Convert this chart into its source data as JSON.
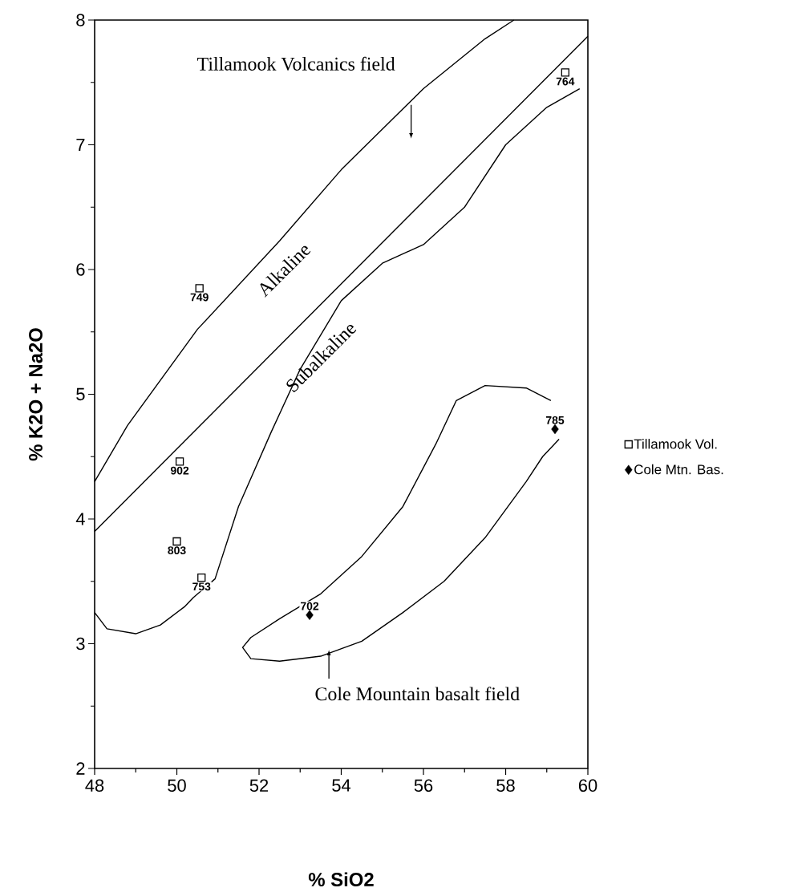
{
  "chart_data": {
    "type": "scatter",
    "xlabel": "% SiO2",
    "ylabel": "% K2O + Na2O",
    "xlim": [
      48,
      60
    ],
    "ylim": [
      2,
      8
    ],
    "xticks": [
      48,
      50,
      52,
      54,
      56,
      58,
      60
    ],
    "yticks": [
      2,
      3,
      4,
      5,
      6,
      7,
      8
    ],
    "legend": "right",
    "grid": false,
    "series": [
      {
        "name": "Tillamook Vol.",
        "marker": "square",
        "color": "#000000",
        "x": [
          50.55,
          50.07,
          50.0,
          50.6,
          59.45
        ],
        "values": [
          5.85,
          4.46,
          3.82,
          3.53,
          7.58
        ]
      },
      {
        "name": "Cole Mtn. Bas.",
        "marker": "diamond",
        "color": "#000000",
        "x": [
          53.23,
          59.2
        ],
        "values": [
          3.23,
          4.72
        ]
      },
      {
        "type": "line",
        "marker": "none",
        "color": "#000000",
        "x": [
          48,
          60
        ],
        "values": [
          3.9,
          7.87
        ]
      },
      {
        "type": "line",
        "marker": "none",
        "color": "#000000",
        "x": [
          48,
          48.8,
          50.5,
          52.5,
          54,
          56,
          57.5,
          58.2
        ],
        "values": [
          4.3,
          4.75,
          5.52,
          6.23,
          6.8,
          7.45,
          7.85,
          8.0
        ]
      },
      {
        "type": "line",
        "marker": "none",
        "color": "#000000",
        "x": [
          48,
          48.3,
          49,
          49.6,
          50.2,
          50.4,
          50.93,
          51.5,
          52.3,
          53,
          54,
          55,
          56,
          57,
          58,
          59,
          59.8
        ],
        "values": [
          3.25,
          3.12,
          3.08,
          3.15,
          3.3,
          3.37,
          3.52,
          4.1,
          4.7,
          5.2,
          5.75,
          6.05,
          6.2,
          6.5,
          7.0,
          7.3,
          7.45
        ]
      },
      {
        "type": "line",
        "marker": "none",
        "color": "#000000",
        "x": [
          59.1,
          58.5,
          57.5,
          56.8,
          56.3,
          55.5,
          54.5,
          53.5,
          52.5,
          51.8,
          51.6,
          51.8,
          52.5,
          53.5,
          54.5,
          55.5,
          56.5,
          57.5,
          58.5,
          58.9,
          59.3
        ],
        "values": [
          4.95,
          5.05,
          5.07,
          4.95,
          4.6,
          4.1,
          3.7,
          3.4,
          3.2,
          3.05,
          2.97,
          2.88,
          2.86,
          2.9,
          3.02,
          3.25,
          3.5,
          3.85,
          4.3,
          4.5,
          4.64
        ]
      }
    ],
    "annotations": [
      "Tillamook Volcanics field",
      "Alkaline",
      "Subalkaline",
      {
        "text": "Cole Mountain basalt field",
        "x": 53.7,
        "y": 2.95
      },
      {
        "text": "749",
        "x": 50.55,
        "y": 5.85
      },
      {
        "text": "902",
        "x": 50.07,
        "y": 4.46
      },
      {
        "text": "803",
        "x": 50.0,
        "y": 3.82
      },
      {
        "text": "753",
        "x": 50.6,
        "y": 3.53
      },
      {
        "text": "764",
        "x": 59.45,
        "y": 7.58
      },
      {
        "text": "702",
        "x": 53.23,
        "y": 3.23
      },
      {
        "text": "785",
        "x": 59.2,
        "y": 4.72
      }
    ]
  }
}
